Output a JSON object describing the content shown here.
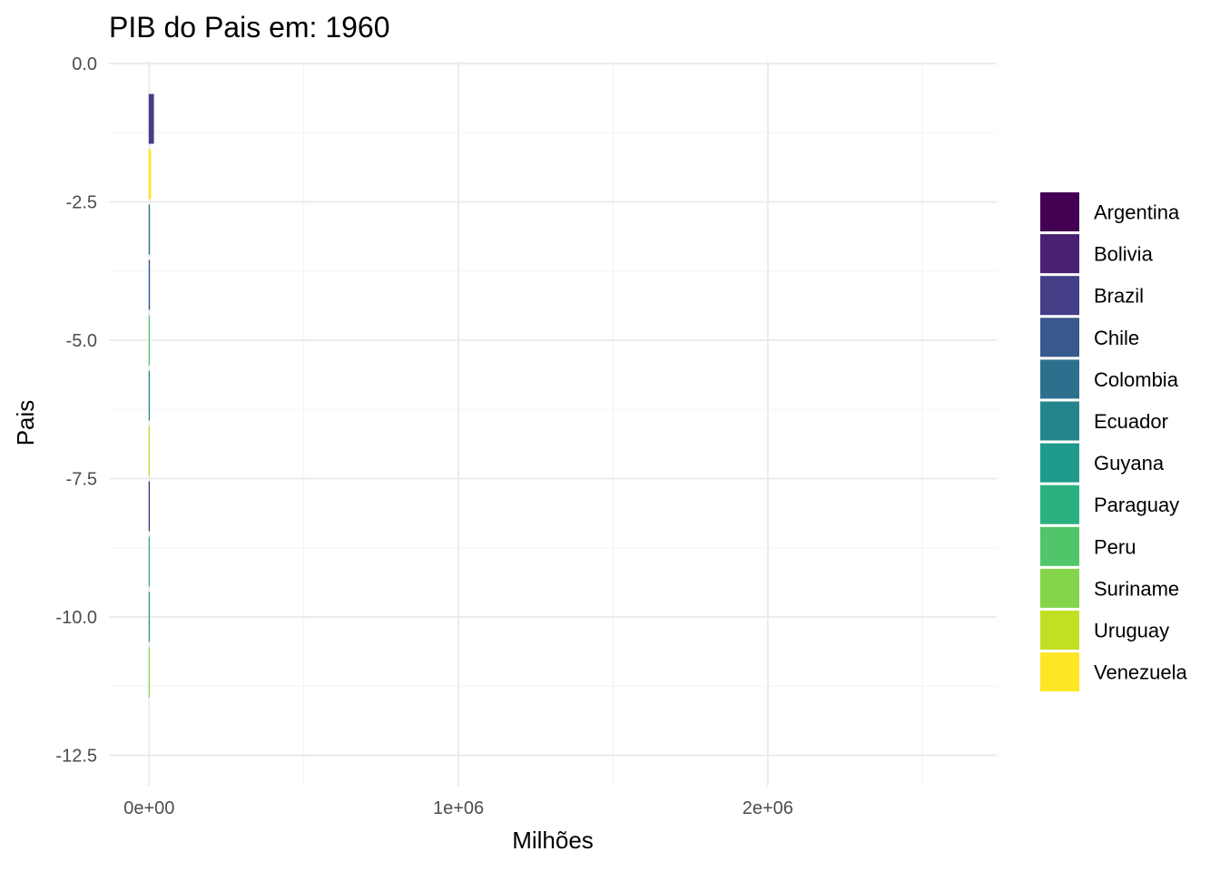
{
  "chart_data": {
    "type": "bar",
    "orientation": "horizontal",
    "title": "PIB do Pais em: 1960",
    "xlabel": "Milhões",
    "ylabel": "Pais",
    "xlim": [
      -130000,
      2740000
    ],
    "ylim": [
      -13.05,
      0.05
    ],
    "x_ticks": [
      0,
      1000000,
      2000000
    ],
    "x_tick_labels": [
      "0e+00",
      "1e+06",
      "2e+06"
    ],
    "y_ticks": [
      0,
      -2.5,
      -5,
      -7.5,
      -10,
      -12.5
    ],
    "y_tick_labels": [
      "0.0",
      "-2.5",
      "-5.0",
      "-7.5",
      "-10.0",
      "-12.5"
    ],
    "grid": true,
    "legend_position": "right",
    "bar_height": 0.9,
    "bars": [
      {
        "country": "Brazil",
        "rank": -1,
        "value": 17000
      },
      {
        "country": "Venezuela",
        "rank": -2,
        "value": 7800
      },
      {
        "country": "Colombia",
        "rank": -3,
        "value": 4000
      },
      {
        "country": "Chile",
        "rank": -4,
        "value": 4100
      },
      {
        "country": "Peru",
        "rank": -5,
        "value": 2600
      },
      {
        "country": "Ecuador",
        "rank": -6,
        "value": 1600
      },
      {
        "country": "Uruguay",
        "rank": -7,
        "value": 1300
      },
      {
        "country": "Bolivia",
        "rank": -8,
        "value": 600
      },
      {
        "country": "Paraguay",
        "rank": -9,
        "value": 300
      },
      {
        "country": "Guyana",
        "rank": -10,
        "value": 200
      },
      {
        "country": "Suriname",
        "rank": -11,
        "value": 100
      }
    ],
    "legend": [
      {
        "name": "Argentina",
        "color": "#440154"
      },
      {
        "name": "Bolivia",
        "color": "#482173"
      },
      {
        "name": "Brazil",
        "color": "#433E85"
      },
      {
        "name": "Chile",
        "color": "#38598C"
      },
      {
        "name": "Colombia",
        "color": "#2D708E"
      },
      {
        "name": "Ecuador",
        "color": "#25858E"
      },
      {
        "name": "Guyana",
        "color": "#1E9B8A"
      },
      {
        "name": "Paraguay",
        "color": "#2BB07F"
      },
      {
        "name": "Peru",
        "color": "#51C56A"
      },
      {
        "name": "Suriname",
        "color": "#85D54A"
      },
      {
        "name": "Uruguay",
        "color": "#C2DF23"
      },
      {
        "name": "Venezuela",
        "color": "#FDE725"
      }
    ]
  }
}
